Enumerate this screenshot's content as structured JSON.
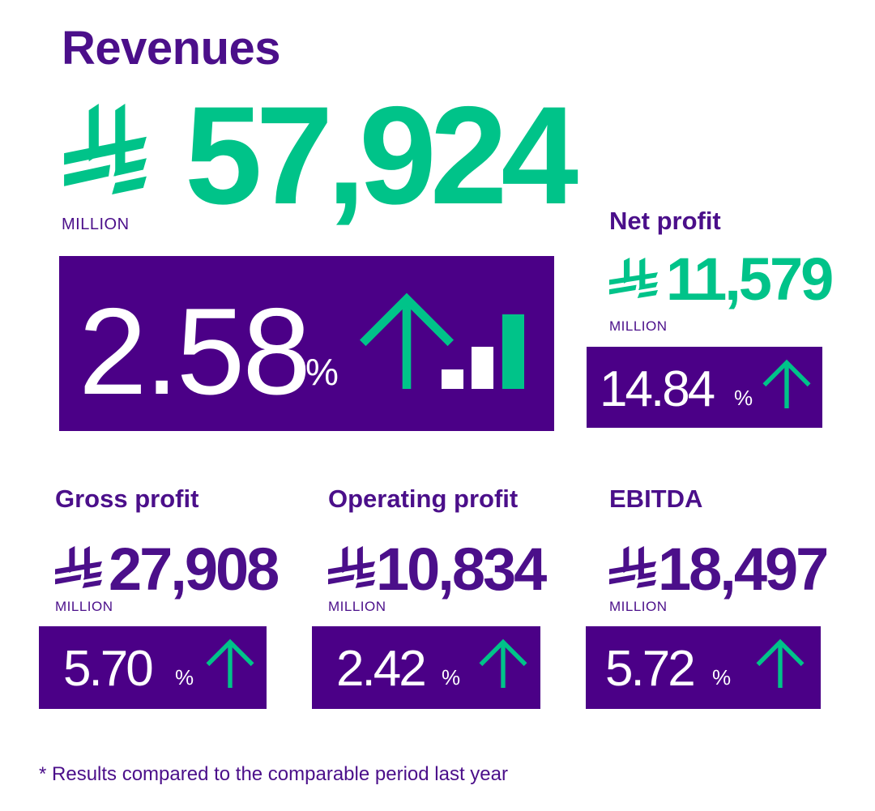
{
  "colors": {
    "purple": "#4b0087",
    "green": "#00c389",
    "text_purple": "#4b0f8a"
  },
  "revenues": {
    "label": "Revenues",
    "value": "57,924",
    "unit": "MILLION",
    "change_value": "2.58",
    "change_sign": "%",
    "currency_icon": "riyal-icon",
    "trend_icon": "arrow-up-icon"
  },
  "net_profit": {
    "label": "Net profit",
    "value": "11,579",
    "unit": "MILLION",
    "change_value": "14.84",
    "change_sign": "%"
  },
  "gross_profit": {
    "label": "Gross profit",
    "value": "27,908",
    "unit": "MILLION",
    "change_value": "5.70",
    "change_sign": "%"
  },
  "operating_profit": {
    "label": "Operating profit",
    "value": "10,834",
    "unit": "MILLION",
    "change_value": "2.42",
    "change_sign": "%"
  },
  "ebitda": {
    "label": "EBITDA",
    "value": "18,497",
    "unit": "MILLION",
    "change_value": "5.72",
    "change_sign": "%"
  },
  "footnote": "* Results compared to the comparable period last year"
}
